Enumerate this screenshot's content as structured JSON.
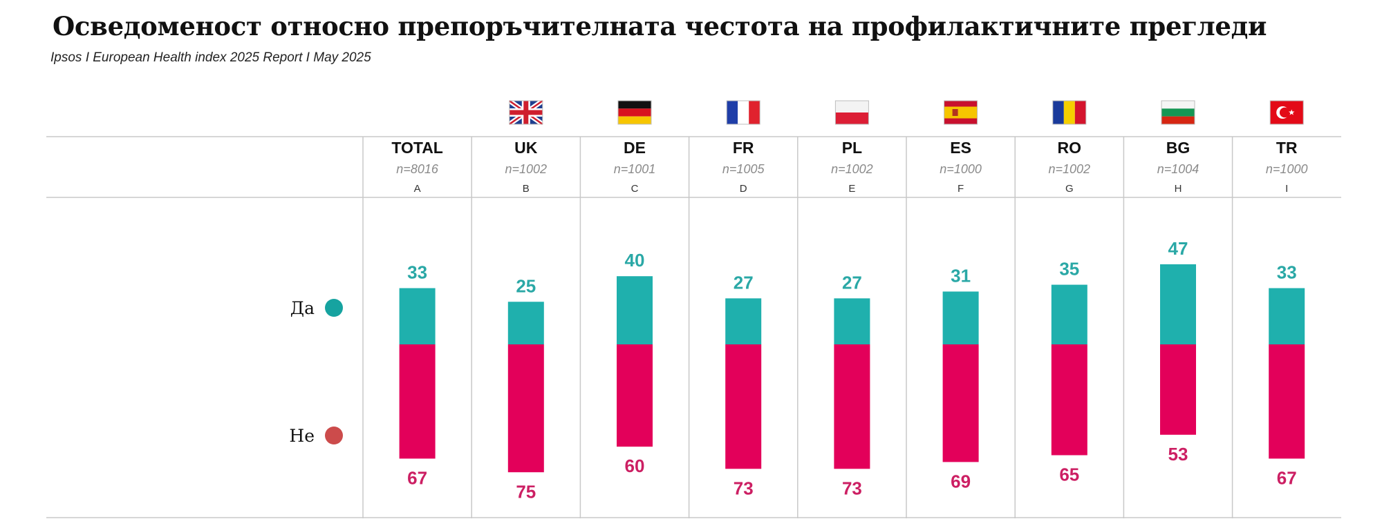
{
  "title": "Осведоменост относно препоръчителната честота на профилактичните прегледи",
  "subtitle": "Ipsos I European Health index 2025 Report I May 2025",
  "colors": {
    "yes": "#1fb0ad",
    "no": "#e3005a",
    "yes_label": "#2aa8a6",
    "no_label": "#cc1f63",
    "legend_yes": "#16a3a0",
    "legend_no": "#cc4b4b",
    "grid": "#c8c8c8"
  },
  "columns": [
    {
      "name": "TOTAL",
      "n": "n=8016",
      "letter": "A",
      "flag": null
    },
    {
      "name": "UK",
      "n": "n=1002",
      "letter": "B",
      "flag": "uk-flag-icon"
    },
    {
      "name": "DE",
      "n": "n=1001",
      "letter": "C",
      "flag": "de-flag-icon"
    },
    {
      "name": "FR",
      "n": "n=1005",
      "letter": "D",
      "flag": "fr-flag-icon"
    },
    {
      "name": "PL",
      "n": "n=1002",
      "letter": "E",
      "flag": "pl-flag-icon"
    },
    {
      "name": "ES",
      "n": "n=1000",
      "letter": "F",
      "flag": "es-flag-icon"
    },
    {
      "name": "RO",
      "n": "n=1002",
      "letter": "G",
      "flag": "ro-flag-icon"
    },
    {
      "name": "BG",
      "n": "n=1004",
      "letter": "H",
      "flag": "bg-flag-icon"
    },
    {
      "name": "TR",
      "n": "n=1000",
      "letter": "I",
      "flag": "tr-flag-icon"
    }
  ],
  "chart_data": {
    "type": "bar",
    "stacked": true,
    "categories": [
      "TOTAL",
      "UK",
      "DE",
      "FR",
      "PL",
      "ES",
      "RO",
      "BG",
      "TR"
    ],
    "series": [
      {
        "name": "Да",
        "values": [
          33,
          25,
          40,
          27,
          27,
          31,
          35,
          47,
          33
        ]
      },
      {
        "name": "Не",
        "values": [
          67,
          75,
          60,
          73,
          73,
          69,
          65,
          53,
          67
        ]
      }
    ],
    "legend": "left",
    "ylim": [
      0,
      100
    ]
  }
}
